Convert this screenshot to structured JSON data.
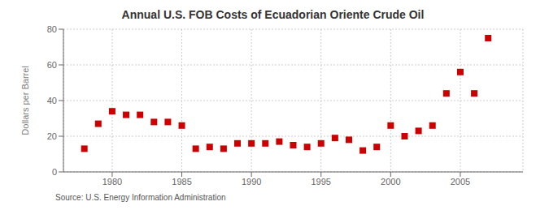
{
  "chart_data": {
    "type": "scatter",
    "title": "Annual U.S. FOB Costs of Ecuadorian Oriente Crude Oil",
    "ylabel": "Dollars per Barrel",
    "annotations": [
      "Source: U.S. Energy Information Administration"
    ],
    "x": [
      1978,
      1979,
      1980,
      1981,
      1982,
      1983,
      1984,
      1985,
      1986,
      1987,
      1988,
      1989,
      1990,
      1991,
      1992,
      1993,
      1994,
      1995,
      1996,
      1997,
      1998,
      1999,
      2000,
      2001,
      2002,
      2003,
      2004,
      2005,
      2006,
      2007
    ],
    "values": [
      13,
      27,
      34,
      32,
      32,
      28,
      28,
      26,
      13,
      14,
      13,
      16,
      16,
      16,
      17,
      15,
      14,
      16,
      19,
      18,
      12,
      14,
      26,
      20,
      23,
      26,
      44,
      56,
      44,
      75
    ],
    "color": "#cc0000",
    "marker": "square",
    "xlim": [
      1976.5,
      2009.5
    ],
    "ylim": [
      0,
      80
    ],
    "xticks": [
      1980,
      1985,
      1990,
      1995,
      2000,
      2005
    ],
    "yticks": [
      0,
      20,
      40,
      60,
      80
    ],
    "grid": true
  }
}
